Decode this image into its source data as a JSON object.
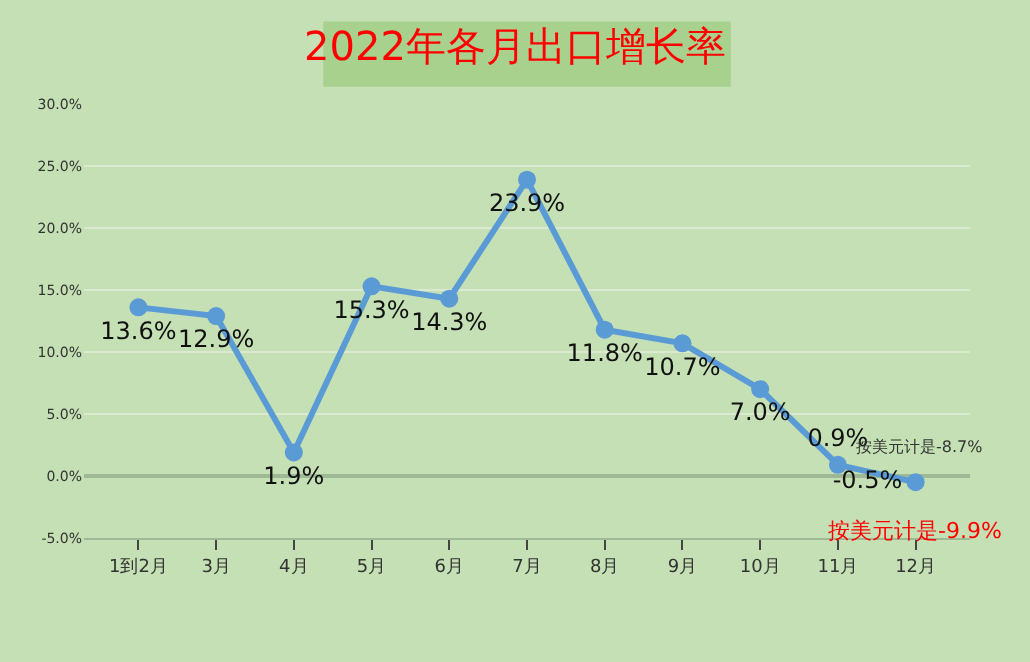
{
  "chart_data": {
    "type": "line",
    "title": "2022年各月出口增长率",
    "categories": [
      "1到2月",
      "3月",
      "4月",
      "5月",
      "6月",
      "7月",
      "8月",
      "9月",
      "10月",
      "11月",
      "12月"
    ],
    "series": [
      {
        "color": "#5b9bd5",
        "values": [
          13.6,
          12.9,
          1.9,
          15.3,
          14.3,
          23.9,
          11.8,
          10.7,
          7.0,
          0.9,
          -0.5
        ]
      }
    ],
    "value_labels": [
      "13.6%",
      "12.9%",
      "1.9%",
      "15.3%",
      "14.3%",
      "23.9%",
      "11.8%",
      "10.7%",
      "7.0%",
      "0.9%",
      "-0.5%"
    ],
    "ylim": [
      -5,
      30
    ],
    "yticks": [
      {
        "value": -5,
        "label": "-5.0%"
      },
      {
        "value": 0,
        "label": "0.0%"
      },
      {
        "value": 5,
        "label": "5.0%"
      },
      {
        "value": 10,
        "label": "10.0%"
      },
      {
        "value": 15,
        "label": "15.0%"
      },
      {
        "value": 20,
        "label": "20.0%"
      },
      {
        "value": 25,
        "label": "25.0%"
      },
      {
        "value": 30,
        "label": "30.0%"
      }
    ],
    "annotations": [
      {
        "text": "按美元计是-8.7%",
        "x": "11月",
        "y": 0.9
      },
      {
        "text": "按美元计是-9.9%",
        "x": "12月",
        "y": -0.5
      }
    ],
    "grid": "y",
    "marker": "circle",
    "line_style": "solid",
    "legend": false
  }
}
